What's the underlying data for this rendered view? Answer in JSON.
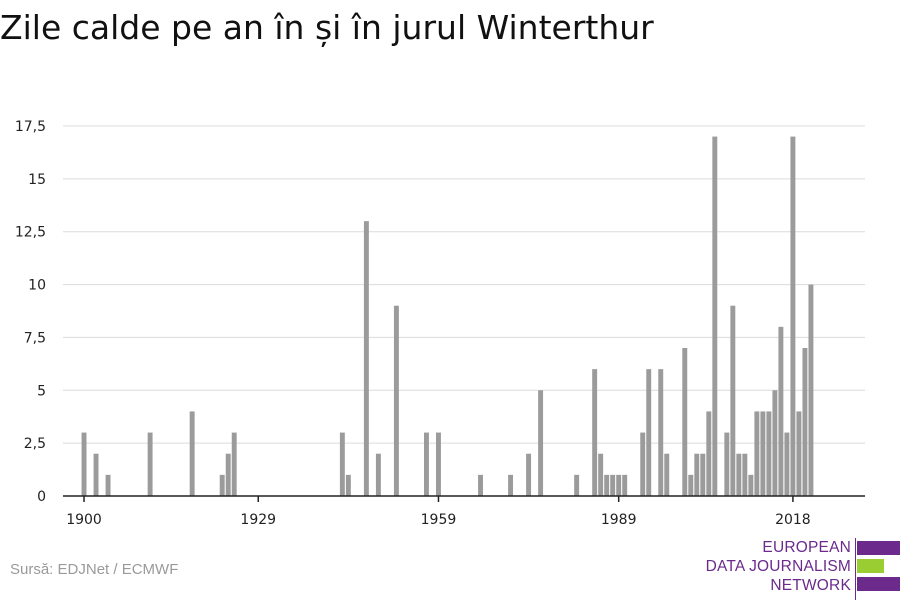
{
  "title": "Zile calde pe an în și în jurul Winterthur",
  "source": "Sursă: EDJNet / ECMWF",
  "logo": {
    "line1": "EUROPEAN",
    "line2": "DATA JOURNALISM",
    "line3": "NETWORK",
    "colors": {
      "purple": "#6b2a8c",
      "green": "#9acd32"
    }
  },
  "chart_data": {
    "type": "bar",
    "xlabel": "",
    "ylabel": "",
    "ylim": [
      0,
      17.5
    ],
    "yticks": [
      0,
      2.5,
      5,
      7.5,
      10,
      12.5,
      15,
      17.5
    ],
    "ytick_labels": [
      "0",
      "2,5",
      "5",
      "7,5",
      "10",
      "12,5",
      "15",
      "17,5"
    ],
    "xticks": [
      1900,
      1929,
      1959,
      1989,
      2018
    ],
    "xtick_labels": [
      "1900",
      "1929",
      "1959",
      "1989",
      "2018"
    ],
    "xlim": [
      1897,
      2020
    ],
    "grid": true,
    "bar_color": "#9b9b9b",
    "points": [
      {
        "x": 1900,
        "y": 3
      },
      {
        "x": 1901,
        "y": 0
      },
      {
        "x": 1902,
        "y": 2
      },
      {
        "x": 1903,
        "y": 0
      },
      {
        "x": 1904,
        "y": 1
      },
      {
        "x": 1905,
        "y": 0
      },
      {
        "x": 1906,
        "y": 0
      },
      {
        "x": 1907,
        "y": 0
      },
      {
        "x": 1908,
        "y": 0
      },
      {
        "x": 1909,
        "y": 0
      },
      {
        "x": 1910,
        "y": 0
      },
      {
        "x": 1911,
        "y": 3
      },
      {
        "x": 1912,
        "y": 0
      },
      {
        "x": 1913,
        "y": 0
      },
      {
        "x": 1914,
        "y": 0
      },
      {
        "x": 1915,
        "y": 0
      },
      {
        "x": 1916,
        "y": 0
      },
      {
        "x": 1917,
        "y": 0
      },
      {
        "x": 1918,
        "y": 4
      },
      {
        "x": 1919,
        "y": 0
      },
      {
        "x": 1920,
        "y": 0
      },
      {
        "x": 1921,
        "y": 0
      },
      {
        "x": 1922,
        "y": 0
      },
      {
        "x": 1923,
        "y": 1
      },
      {
        "x": 1924,
        "y": 2
      },
      {
        "x": 1925,
        "y": 3
      },
      {
        "x": 1926,
        "y": 0
      },
      {
        "x": 1927,
        "y": 0
      },
      {
        "x": 1928,
        "y": 0
      },
      {
        "x": 1929,
        "y": 0
      },
      {
        "x": 1930,
        "y": 0
      },
      {
        "x": 1931,
        "y": 0
      },
      {
        "x": 1932,
        "y": 0
      },
      {
        "x": 1933,
        "y": 0
      },
      {
        "x": 1934,
        "y": 0
      },
      {
        "x": 1935,
        "y": 0
      },
      {
        "x": 1936,
        "y": 0
      },
      {
        "x": 1937,
        "y": 0
      },
      {
        "x": 1938,
        "y": 0
      },
      {
        "x": 1939,
        "y": 0
      },
      {
        "x": 1940,
        "y": 0
      },
      {
        "x": 1941,
        "y": 0
      },
      {
        "x": 1942,
        "y": 0
      },
      {
        "x": 1943,
        "y": 3
      },
      {
        "x": 1944,
        "y": 1
      },
      {
        "x": 1945,
        "y": 0
      },
      {
        "x": 1946,
        "y": 0
      },
      {
        "x": 1947,
        "y": 13
      },
      {
        "x": 1948,
        "y": 0
      },
      {
        "x": 1949,
        "y": 2
      },
      {
        "x": 1950,
        "y": 0
      },
      {
        "x": 1951,
        "y": 0
      },
      {
        "x": 1952,
        "y": 9
      },
      {
        "x": 1953,
        "y": 0
      },
      {
        "x": 1954,
        "y": 0
      },
      {
        "x": 1955,
        "y": 0
      },
      {
        "x": 1956,
        "y": 0
      },
      {
        "x": 1957,
        "y": 3
      },
      {
        "x": 1958,
        "y": 0
      },
      {
        "x": 1959,
        "y": 3
      },
      {
        "x": 1960,
        "y": 0
      },
      {
        "x": 1961,
        "y": 0
      },
      {
        "x": 1962,
        "y": 0
      },
      {
        "x": 1963,
        "y": 0
      },
      {
        "x": 1964,
        "y": 0
      },
      {
        "x": 1965,
        "y": 0
      },
      {
        "x": 1966,
        "y": 1
      },
      {
        "x": 1967,
        "y": 0
      },
      {
        "x": 1968,
        "y": 0
      },
      {
        "x": 1969,
        "y": 0
      },
      {
        "x": 1970,
        "y": 0
      },
      {
        "x": 1971,
        "y": 1
      },
      {
        "x": 1972,
        "y": 0
      },
      {
        "x": 1973,
        "y": 0
      },
      {
        "x": 1974,
        "y": 2
      },
      {
        "x": 1975,
        "y": 0
      },
      {
        "x": 1976,
        "y": 5
      },
      {
        "x": 1977,
        "y": 0
      },
      {
        "x": 1978,
        "y": 0
      },
      {
        "x": 1979,
        "y": 0
      },
      {
        "x": 1980,
        "y": 0
      },
      {
        "x": 1981,
        "y": 0
      },
      {
        "x": 1982,
        "y": 1
      },
      {
        "x": 1983,
        "y": 0
      },
      {
        "x": 1984,
        "y": 0
      },
      {
        "x": 1985,
        "y": 6
      },
      {
        "x": 1986,
        "y": 2
      },
      {
        "x": 1987,
        "y": 1
      },
      {
        "x": 1988,
        "y": 1
      },
      {
        "x": 1989,
        "y": 1
      },
      {
        "x": 1990,
        "y": 1
      },
      {
        "x": 1991,
        "y": 0
      },
      {
        "x": 1992,
        "y": 0
      },
      {
        "x": 1993,
        "y": 3
      },
      {
        "x": 1994,
        "y": 6
      },
      {
        "x": 1995,
        "y": 0
      },
      {
        "x": 1996,
        "y": 6
      },
      {
        "x": 1997,
        "y": 2
      },
      {
        "x": 1998,
        "y": 0
      },
      {
        "x": 1999,
        "y": 0
      },
      {
        "x": 2000,
        "y": 7
      },
      {
        "x": 2001,
        "y": 1
      },
      {
        "x": 2002,
        "y": 2
      },
      {
        "x": 2003,
        "y": 2
      },
      {
        "x": 2004,
        "y": 4
      },
      {
        "x": 2005,
        "y": 17
      },
      {
        "x": 2006,
        "y": 0
      },
      {
        "x": 2007,
        "y": 3
      },
      {
        "x": 2008,
        "y": 9
      },
      {
        "x": 2009,
        "y": 2
      },
      {
        "x": 2010,
        "y": 2
      },
      {
        "x": 2011,
        "y": 1
      },
      {
        "x": 2012,
        "y": 4
      },
      {
        "x": 2013,
        "y": 4
      },
      {
        "x": 2014,
        "y": 4
      },
      {
        "x": 2015,
        "y": 5
      },
      {
        "x": 2016,
        "y": 8
      },
      {
        "x": 2017,
        "y": 3
      },
      {
        "x": 2018,
        "y": 17
      },
      {
        "x": 2019,
        "y": 4
      },
      {
        "x": 2020,
        "y": 7
      },
      {
        "x": 2021,
        "y": 10
      }
    ]
  }
}
